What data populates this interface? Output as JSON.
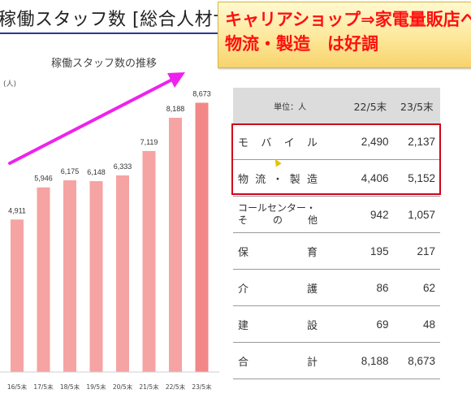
{
  "slide": {
    "title": "稼働スタッフ数 [総合人材サービ"
  },
  "callout": {
    "line1": "キャリアショップ⇒家電量販店へ",
    "line2": "物流・製造　は好調"
  },
  "chart_data": {
    "type": "bar",
    "title": "稼働スタッフ数の推移",
    "ylabel": "(人)",
    "xlabel": "",
    "categories": [
      "16/5末",
      "17/5末",
      "18/5末",
      "19/5末",
      "20/5末",
      "21/5末",
      "22/5末",
      "23/5末"
    ],
    "values": [
      4911,
      5946,
      6175,
      6148,
      6333,
      7119,
      8188,
      8673
    ],
    "value_labels": [
      "4,911",
      "5,946",
      "6,175",
      "6,148",
      "6,333",
      "7,119",
      "8,188",
      "8,673"
    ],
    "ylim": [
      0,
      9000
    ],
    "grid": false,
    "colors": {
      "bar": "#f6a3a3",
      "last_bar": "#f38787",
      "arrow": "#ee22ee"
    }
  },
  "table": {
    "unit": "単位：人",
    "headers": [
      "22/5末",
      "23/5末"
    ],
    "rows": [
      {
        "name_chars": [
          "モ",
          "バ",
          "イ",
          "ル"
        ],
        "v1": "2,490",
        "v2": "2,137"
      },
      {
        "name_chars": [
          "物",
          "流",
          "・",
          "製",
          "造"
        ],
        "v1": "4,406",
        "v2": "5,152"
      },
      {
        "name_line1": "コールセンター・",
        "name_line2_chars": [
          "そ",
          "の",
          "他"
        ],
        "v1": "942",
        "v2": "1,057"
      },
      {
        "name_chars": [
          "保",
          "育"
        ],
        "v1": "195",
        "v2": "217"
      },
      {
        "name_chars": [
          "介",
          "護"
        ],
        "v1": "86",
        "v2": "62"
      },
      {
        "name_chars": [
          "建",
          "設"
        ],
        "v1": "69",
        "v2": "48"
      },
      {
        "name_chars": [
          "合",
          "計"
        ],
        "v1": "8,188",
        "v2": "8,673"
      }
    ],
    "highlight_color": "#d0021b"
  }
}
